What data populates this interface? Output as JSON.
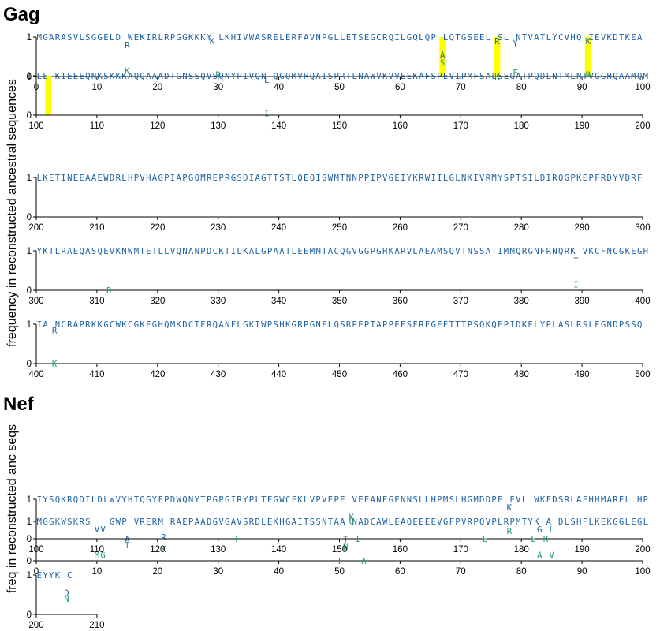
{
  "panels": [
    {
      "id": "gag",
      "title": "Gag",
      "ylabel": "frequency in reconstructed ancestral sequences",
      "rows": [
        {
          "start": 0,
          "end": 100,
          "xticks": [
            0,
            10,
            20,
            30,
            40,
            50,
            60,
            70,
            80,
            90,
            100
          ],
          "yticks": [
            "0",
            "1"
          ]
        },
        {
          "start": 100,
          "end": 200,
          "xticks": [
            100,
            110,
            120,
            130,
            140,
            150,
            160,
            170,
            180,
            190,
            200
          ],
          "yticks": [
            "0",
            "1"
          ]
        },
        {
          "start": 200,
          "end": 300,
          "xticks": [
            200,
            210,
            220,
            230,
            240,
            250,
            260,
            270,
            280,
            290,
            300
          ],
          "yticks": [
            "0",
            "1"
          ]
        },
        {
          "start": 300,
          "end": 400,
          "xticks": [
            300,
            310,
            320,
            330,
            340,
            350,
            360,
            370,
            380,
            390,
            400
          ],
          "yticks": [
            "0",
            "1"
          ]
        },
        {
          "start": 400,
          "end": 500,
          "xticks": [
            400,
            410,
            420,
            430,
            440,
            450,
            460,
            470,
            480,
            490,
            500
          ],
          "yticks": [
            "0",
            "1"
          ]
        }
      ]
    },
    {
      "id": "nef",
      "title": "Nef",
      "ylabel": "freq in reconstructed anc seqs",
      "rows": [
        {
          "start": 0,
          "end": 100,
          "xticks": [
            0,
            10,
            20,
            30,
            40,
            50,
            60,
            70,
            80,
            90,
            100
          ],
          "yticks": [
            "0",
            "1"
          ]
        },
        {
          "start": 100,
          "end": 200,
          "xticks": [
            100,
            110,
            120,
            130,
            140,
            150,
            160,
            170,
            180,
            190,
            200
          ],
          "yticks": [
            "0",
            "1"
          ]
        },
        {
          "start": 200,
          "end": 210,
          "xticks": [
            200,
            210
          ],
          "yticks": [
            "0",
            "1"
          ]
        }
      ]
    }
  ],
  "chart_data": [
    {
      "type": "scatter",
      "title": "Gag",
      "ylabel": "frequency in reconstructed ancestral sequences",
      "ylim": [
        0,
        1
      ],
      "sequence_rows": [
        "MGARASVLSGGELD WEKIRLRPGGKKKY LKHIVWASRELERFAVNPGLLETSEGCRQILGQLQP LQTGSEEL SL NTVATLYCVHQ IEVKDTKEA",
        "LE KIEEEQNKSKKKAQQAAADTGNSSQVSQNYPIVQN QGQMVHQAISPRTLNAWVKVVEEKAFSPEVIPMFSALSEGATPQDLNTMLNTVGGHQAAMQM",
        "LKETINEEAAEWDRLHPVHAGPIAPGQMREPRGSDIAGTTSTLQEQIGWMTNNPPIPVGEIYKRWIILGLNKIVRMYSPTSILDIRQGPKEPFRDYVDRF",
        "YKTLRAEQASQEVKNWMTETLLVQNANPDCKTILKALGPAATLEEMMTACQGVGGPGHKARVLAEAMSQVTNSSATIMMQRGNFRNQRK VKCFNCGKEGH",
        "IA NCRAPRKKGCWKCGKEGHQMKDCTERQANFLGKIWPSHKGRPGNFLQSRPEPTAPPEESFRFGEETTTPSQKQEPIDKELYPLASLRSLFGNDPSSQ"
      ],
      "highlight_positions": [
        67,
        76,
        91,
        102
      ],
      "variants": [
        {
          "pos": 15,
          "aa": "R",
          "freq": 0.8
        },
        {
          "pos": 15,
          "aa": "K",
          "freq": 0.15
        },
        {
          "pos": 29,
          "aa": "K",
          "freq": 0.9
        },
        {
          "pos": 30,
          "aa": "R",
          "freq": 0.05
        },
        {
          "pos": 67,
          "aa": "A",
          "freq": 0.55
        },
        {
          "pos": 67,
          "aa": "S",
          "freq": 0.35
        },
        {
          "pos": 76,
          "aa": "R",
          "freq": 0.9
        },
        {
          "pos": 76,
          "aa": "K",
          "freq": 0.0
        },
        {
          "pos": 79,
          "aa": "Y",
          "freq": 0.85
        },
        {
          "pos": 79,
          "aa": "F",
          "freq": 0.1
        },
        {
          "pos": 91,
          "aa": "K",
          "freq": 0.9
        },
        {
          "pos": 91,
          "aa": "R",
          "freq": 0.05
        },
        {
          "pos": 138,
          "aa": "L",
          "freq": 0.9
        },
        {
          "pos": 138,
          "aa": "I",
          "freq": 0.05
        },
        {
          "pos": 389,
          "aa": "T",
          "freq": 0.75
        },
        {
          "pos": 389,
          "aa": "I",
          "freq": 0.15
        },
        {
          "pos": 312,
          "aa": "D",
          "freq": 0.0
        },
        {
          "pos": 403,
          "aa": "R",
          "freq": 0.85
        },
        {
          "pos": 403,
          "aa": "K",
          "freq": 0.0
        }
      ]
    },
    {
      "type": "scatter",
      "title": "Nef",
      "ylabel": "freq in reconstructed anc seqs",
      "ylim": [
        0,
        1
      ],
      "sequence_rows": [
        "MGGKWSKRS   GWP VRERM RAEPAADGVGAVSRDLEKHGAITSSNTAA NADCAWLEAQEEEEVGFPVRPQVPLRPMTYK A DLSHFLKEKGGLEGL",
        "IYSQKRQDILDLWVYHTQGYFPDWQNYTPGPGIRYPLTFGWCFKLVPVEPE VEEANEGENNSLLHPMSLHGMDDPE EVL WKFDSRLAFHHMAREL HP",
        "EYYK C"
      ],
      "variants": [
        {
          "pos": 10,
          "aa": "V",
          "freq": 0.8
        },
        {
          "pos": 11,
          "aa": "V",
          "freq": 0.8
        },
        {
          "pos": 10,
          "aa": "M",
          "freq": 0.15
        },
        {
          "pos": 11,
          "aa": "G",
          "freq": 0.15
        },
        {
          "pos": 15,
          "aa": "A",
          "freq": 0.55
        },
        {
          "pos": 15,
          "aa": "T",
          "freq": 0.4
        },
        {
          "pos": 21,
          "aa": "R",
          "freq": 0.6
        },
        {
          "pos": 21,
          "aa": "K",
          "freq": 0.3
        },
        {
          "pos": 51,
          "aa": "T",
          "freq": 0.55
        },
        {
          "pos": 51,
          "aa": "N",
          "freq": 0.35
        },
        {
          "pos": 50,
          "aa": "T",
          "freq": 0.0
        },
        {
          "pos": 54,
          "aa": "A",
          "freq": 0.0
        },
        {
          "pos": 83,
          "aa": "G",
          "freq": 0.8
        },
        {
          "pos": 85,
          "aa": "L",
          "freq": 0.8
        },
        {
          "pos": 83,
          "aa": "A",
          "freq": 0.15
        },
        {
          "pos": 85,
          "aa": "V",
          "freq": 0.15
        },
        {
          "pos": 152,
          "aa": "K",
          "freq": 0.55
        },
        {
          "pos": 152,
          "aa": "Q",
          "freq": 0.45
        },
        {
          "pos": 153,
          "aa": "I",
          "freq": 0.0
        },
        {
          "pos": 133,
          "aa": "T",
          "freq": 0.0
        },
        {
          "pos": 178,
          "aa": "K",
          "freq": 0.8
        },
        {
          "pos": 178,
          "aa": "R",
          "freq": 0.2
        },
        {
          "pos": 174,
          "aa": "E",
          "freq": 0.0
        },
        {
          "pos": 182,
          "aa": "E",
          "freq": 0.0
        },
        {
          "pos": 184,
          "aa": "R",
          "freq": 0.0
        },
        {
          "pos": 205,
          "aa": "D",
          "freq": 0.55
        },
        {
          "pos": 205,
          "aa": "N",
          "freq": 0.4
        }
      ]
    }
  ],
  "colors": {
    "sequence": "#1f63a3",
    "variant_high": "#1f63a3",
    "variant_low": "#1f9a6a",
    "highlight": "#ffff00",
    "axis": "#000000"
  }
}
